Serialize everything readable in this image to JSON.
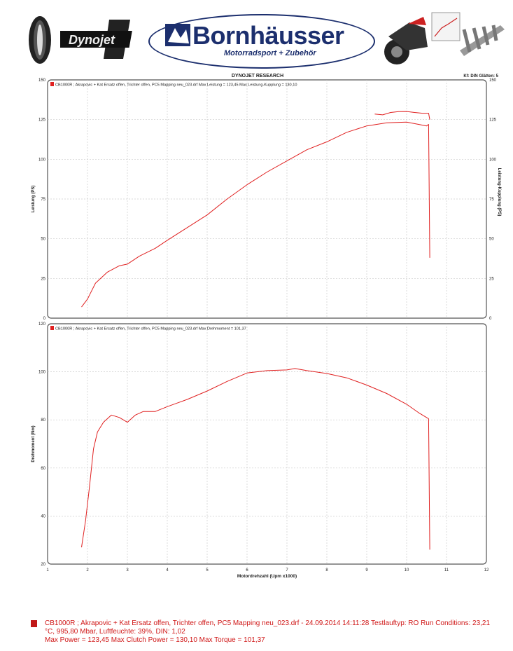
{
  "header": {
    "brand_name": "Bornhäusser",
    "brand_subtitle": "Motorradsport + Zubehör",
    "logo_left_icon": "tire-icon",
    "logo_dynojet_icon": "dynojet-logo",
    "logo_right_icon": "motorcycle-icon"
  },
  "chart_header": {
    "center": "DYNOJET RESEARCH",
    "right": "Kf: DIN  Glätten: 5"
  },
  "colors": {
    "series": "#e02020",
    "grid": "#cccccc",
    "frame": "#555555"
  },
  "chart_data": [
    {
      "type": "line",
      "ylabel": "Leistung (PS)",
      "ylabel_right": "Leistung-Kupplung (PS)",
      "legend": "CB1000R     ; Akrapovic + Kat Ersatz  offen, Trichter offen, PC5 Mapping neu_023.drf Max Leistung = 123,45    Max Leistung-Kupplung = 130,10",
      "xlim": [
        1,
        12
      ],
      "ylim": [
        0,
        150
      ],
      "yticks": [
        0,
        25,
        50,
        75,
        100,
        125,
        150
      ],
      "series": [
        {
          "name": "Leistung",
          "x": [
            1.85,
            2.0,
            2.2,
            2.5,
            2.8,
            3.0,
            3.3,
            3.7,
            4.0,
            4.5,
            5.0,
            5.5,
            6.0,
            6.5,
            7.0,
            7.5,
            8.0,
            8.5,
            9.0,
            9.5,
            10.0,
            10.3,
            10.5,
            10.55,
            10.58
          ],
          "y": [
            7,
            12,
            22,
            29,
            33,
            34,
            39,
            44,
            49,
            57,
            65,
            75,
            84,
            92,
            99,
            106,
            111,
            117,
            121,
            123,
            123.45,
            122,
            121,
            122,
            38
          ]
        },
        {
          "name": "Leistung-Kupplung",
          "x": [
            9.2,
            9.4,
            9.6,
            9.8,
            10.0,
            10.2,
            10.4,
            10.55,
            10.58
          ],
          "y": [
            128.5,
            128,
            129.5,
            130,
            130.1,
            129.5,
            129,
            129,
            125
          ]
        }
      ]
    },
    {
      "type": "line",
      "xlabel": "Motordrehzahl (Upm x1000)",
      "ylabel": "Drehmoment (Nm)",
      "legend": "CB1000R        ; Akrapovic + Kat Ersatz  offen, Trichter offen, PC5 Mapping neu_023.drf Max Drehmoment = 101,37",
      "xlim": [
        1,
        12
      ],
      "ylim": [
        20,
        120
      ],
      "xticks": [
        1,
        2,
        3,
        4,
        5,
        6,
        7,
        8,
        9,
        10,
        11,
        12
      ],
      "yticks": [
        20,
        40,
        60,
        80,
        100,
        120
      ],
      "series": [
        {
          "name": "Drehmoment",
          "x": [
            1.85,
            1.95,
            2.05,
            2.15,
            2.25,
            2.4,
            2.6,
            2.8,
            3.0,
            3.2,
            3.4,
            3.7,
            4.0,
            4.5,
            5.0,
            5.5,
            6.0,
            6.5,
            7.0,
            7.2,
            7.5,
            8.0,
            8.5,
            9.0,
            9.5,
            10.0,
            10.3,
            10.5,
            10.55,
            10.58
          ],
          "y": [
            27,
            38,
            52,
            68,
            75,
            79,
            82,
            81,
            79,
            82,
            83.5,
            83.5,
            85.5,
            88.5,
            92,
            96,
            99.5,
            100.5,
            100.8,
            101.37,
            100.5,
            99.3,
            97.5,
            94.5,
            91,
            86.5,
            83,
            81,
            80.5,
            26
          ]
        }
      ]
    }
  ],
  "footer": {
    "line1": "CB1000R     ; Akrapovic + Kat Ersatz  offen, Trichter offen, PC5 Mapping neu_023.drf - 24.09.2014 14:11:28  Testlauftyp: RO  Run Conditions: 23,21",
    "line2": "°C, 995,80 Mbar,  Luftfeuchte: 39%, DIN: 1,02",
    "line3": "Max Power = 123,45  Max Clutch Power = 130,10  Max Torque = 101,37"
  }
}
